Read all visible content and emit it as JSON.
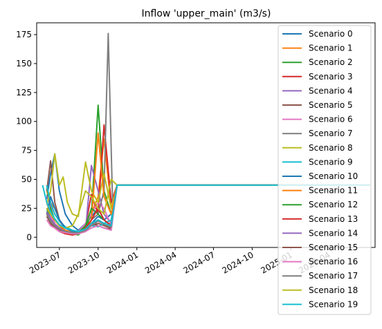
{
  "chart_data": {
    "type": "line",
    "title": "Inflow 'upper_main' (m3/s)",
    "xlabel": "",
    "ylabel": "",
    "x_axis": "date",
    "xlim": [
      "2023-05-08",
      "2025-07-20"
    ],
    "ylim": [
      -8.8,
      185.2
    ],
    "x_ticks": [
      "2023-07-01",
      "2023-10-01",
      "2024-01-01",
      "2024-04-01",
      "2024-07-01",
      "2024-10-01",
      "2025-01-01",
      "2025-04-01"
    ],
    "x_tick_labels": [
      "2023-07",
      "2023-10",
      "2024-01",
      "2024-04",
      "2024-07",
      "2024-10",
      "2025-01",
      "2025-04"
    ],
    "y_ticks": [
      0,
      25,
      50,
      75,
      100,
      125,
      150,
      175
    ],
    "y_tick_labels": [
      "0",
      "25",
      "50",
      "75",
      "100",
      "125",
      "150",
      "175"
    ],
    "grid": false,
    "legend_position": "right",
    "colors": [
      "#1f77b4",
      "#ff7f0e",
      "#2ca02c",
      "#d62728",
      "#9467bd",
      "#8c564b",
      "#e377c2",
      "#7f7f7f",
      "#bcbd22",
      "#17becf"
    ],
    "baseline": {
      "x": [
        "2023-05-22",
        "2025-07-08"
      ],
      "value": 45
    },
    "series": [
      {
        "name": "Scenario 0",
        "x": [
          "2023-06-01",
          "2023-06-10",
          "2023-06-20",
          "2023-07-01",
          "2023-07-15",
          "2023-08-01",
          "2023-08-15",
          "2023-09-01",
          "2023-09-15",
          "2023-10-01",
          "2023-10-15",
          "2023-11-01",
          "2023-11-15"
        ],
        "y": [
          33,
          55,
          72,
          40,
          20,
          10,
          6,
          12,
          18,
          25,
          15,
          20,
          45
        ]
      },
      {
        "name": "Scenario 1",
        "x": [
          "2023-06-01",
          "2023-06-10",
          "2023-06-20",
          "2023-07-01",
          "2023-07-15",
          "2023-08-01",
          "2023-08-15",
          "2023-09-01",
          "2023-09-15",
          "2023-10-01",
          "2023-10-15",
          "2023-11-01",
          "2023-11-15"
        ],
        "y": [
          40,
          30,
          25,
          15,
          8,
          5,
          4,
          10,
          20,
          35,
          85,
          25,
          45
        ]
      },
      {
        "name": "Scenario 2",
        "x": [
          "2023-06-01",
          "2023-06-10",
          "2023-06-20",
          "2023-07-01",
          "2023-07-15",
          "2023-08-01",
          "2023-08-15",
          "2023-09-01",
          "2023-09-15",
          "2023-10-01",
          "2023-10-15",
          "2023-11-01",
          "2023-11-15"
        ],
        "y": [
          45,
          25,
          15,
          10,
          5,
          3,
          2,
          8,
          20,
          114,
          40,
          20,
          45
        ]
      },
      {
        "name": "Scenario 3",
        "x": [
          "2023-06-01",
          "2023-06-10",
          "2023-06-20",
          "2023-07-01",
          "2023-07-15",
          "2023-08-01",
          "2023-08-15",
          "2023-09-01",
          "2023-09-15",
          "2023-10-01",
          "2023-10-15",
          "2023-11-01",
          "2023-11-15"
        ],
        "y": [
          30,
          20,
          12,
          6,
          3,
          2,
          3,
          10,
          37,
          20,
          97,
          30,
          45
        ]
      },
      {
        "name": "Scenario 4",
        "x": [
          "2023-06-01",
          "2023-06-10",
          "2023-06-20",
          "2023-07-01",
          "2023-07-15",
          "2023-08-01",
          "2023-08-15",
          "2023-09-01",
          "2023-09-15",
          "2023-10-01",
          "2023-10-15",
          "2023-11-01",
          "2023-11-15"
        ],
        "y": [
          35,
          28,
          20,
          14,
          8,
          5,
          4,
          6,
          62,
          40,
          20,
          12,
          45
        ]
      },
      {
        "name": "Scenario 5",
        "x": [
          "2023-06-01",
          "2023-06-10",
          "2023-06-20",
          "2023-07-01",
          "2023-07-15",
          "2023-08-01",
          "2023-08-15",
          "2023-09-01",
          "2023-09-15",
          "2023-10-01",
          "2023-10-15",
          "2023-11-01",
          "2023-11-15"
        ],
        "y": [
          40,
          66,
          30,
          15,
          8,
          5,
          3,
          6,
          10,
          12,
          10,
          8,
          45
        ]
      },
      {
        "name": "Scenario 6",
        "x": [
          "2023-06-01",
          "2023-06-10",
          "2023-06-20",
          "2023-07-01",
          "2023-07-15",
          "2023-08-01",
          "2023-08-15",
          "2023-09-01",
          "2023-09-15",
          "2023-10-01",
          "2023-10-15",
          "2023-11-01",
          "2023-11-15"
        ],
        "y": [
          25,
          18,
          12,
          8,
          5,
          3,
          5,
          12,
          20,
          30,
          25,
          10,
          45
        ]
      },
      {
        "name": "Scenario 7",
        "x": [
          "2023-06-01",
          "2023-06-10",
          "2023-06-20",
          "2023-07-01",
          "2023-07-15",
          "2023-08-01",
          "2023-08-15",
          "2023-09-01",
          "2023-09-15",
          "2023-10-01",
          "2023-10-15",
          "2023-10-25",
          "2023-11-05",
          "2023-11-15"
        ],
        "y": [
          30,
          22,
          15,
          10,
          6,
          4,
          3,
          5,
          15,
          20,
          40,
          176,
          20,
          45
        ]
      },
      {
        "name": "Scenario 8",
        "x": [
          "2023-06-01",
          "2023-06-10",
          "2023-06-20",
          "2023-07-01",
          "2023-07-10",
          "2023-07-20",
          "2023-08-01",
          "2023-08-15",
          "2023-09-01",
          "2023-09-15",
          "2023-10-01",
          "2023-10-15",
          "2023-11-01",
          "2023-11-15"
        ],
        "y": [
          28,
          40,
          72,
          45,
          52,
          30,
          20,
          18,
          65,
          40,
          30,
          55,
          25,
          45
        ]
      },
      {
        "name": "Scenario 9",
        "x": [
          "2023-06-01",
          "2023-06-10",
          "2023-06-20",
          "2023-07-01",
          "2023-07-15",
          "2023-08-01",
          "2023-08-15",
          "2023-09-01",
          "2023-09-15",
          "2023-10-01",
          "2023-10-15",
          "2023-11-01",
          "2023-11-15"
        ],
        "y": [
          45,
          30,
          20,
          14,
          9,
          6,
          5,
          7,
          10,
          9,
          12,
          15,
          45
        ]
      },
      {
        "name": "Scenario 10",
        "x": [
          "2023-06-01",
          "2023-06-10",
          "2023-06-20",
          "2023-07-01",
          "2023-07-15",
          "2023-08-01",
          "2023-08-15",
          "2023-09-01",
          "2023-09-15",
          "2023-10-01",
          "2023-10-15",
          "2023-11-01",
          "2023-11-15"
        ],
        "y": [
          20,
          35,
          25,
          15,
          8,
          5,
          4,
          6,
          12,
          18,
          15,
          10,
          45
        ]
      },
      {
        "name": "Scenario 11",
        "x": [
          "2023-06-01",
          "2023-06-10",
          "2023-06-20",
          "2023-07-01",
          "2023-07-15",
          "2023-08-01",
          "2023-08-15",
          "2023-09-01",
          "2023-09-15",
          "2023-10-01",
          "2023-10-15",
          "2023-11-01",
          "2023-11-15"
        ],
        "y": [
          30,
          20,
          15,
          10,
          6,
          4,
          3,
          5,
          15,
          90,
          35,
          20,
          45
        ]
      },
      {
        "name": "Scenario 12",
        "x": [
          "2023-06-01",
          "2023-06-10",
          "2023-06-20",
          "2023-07-01",
          "2023-07-15",
          "2023-08-01",
          "2023-08-15",
          "2023-09-01",
          "2023-09-15",
          "2023-10-01",
          "2023-10-15",
          "2023-11-01",
          "2023-11-15"
        ],
        "y": [
          25,
          15,
          10,
          7,
          4,
          3,
          4,
          10,
          25,
          20,
          15,
          10,
          45
        ]
      },
      {
        "name": "Scenario 13",
        "x": [
          "2023-06-01",
          "2023-06-10",
          "2023-06-20",
          "2023-07-01",
          "2023-07-15",
          "2023-08-01",
          "2023-08-15",
          "2023-09-01",
          "2023-09-15",
          "2023-10-01",
          "2023-10-15",
          "2023-11-01",
          "2023-11-15"
        ],
        "y": [
          20,
          12,
          8,
          5,
          3,
          2,
          3,
          8,
          15,
          25,
          15,
          10,
          45
        ]
      },
      {
        "name": "Scenario 14",
        "x": [
          "2023-06-01",
          "2023-06-10",
          "2023-06-20",
          "2023-07-01",
          "2023-07-15",
          "2023-08-01",
          "2023-08-15",
          "2023-09-01",
          "2023-09-15",
          "2023-10-01",
          "2023-10-15",
          "2023-11-01",
          "2023-11-15"
        ],
        "y": [
          22,
          16,
          11,
          8,
          5,
          4,
          3,
          6,
          10,
          15,
          12,
          9,
          45
        ]
      },
      {
        "name": "Scenario 15",
        "x": [
          "2023-06-01",
          "2023-06-10",
          "2023-06-20",
          "2023-07-01",
          "2023-07-15",
          "2023-08-01",
          "2023-08-15",
          "2023-09-01",
          "2023-09-15",
          "2023-10-01",
          "2023-10-15",
          "2023-11-01",
          "2023-11-15"
        ],
        "y": [
          18,
          12,
          9,
          6,
          4,
          3,
          4,
          7,
          12,
          10,
          8,
          7,
          45
        ]
      },
      {
        "name": "Scenario 16",
        "x": [
          "2023-06-01",
          "2023-06-10",
          "2023-06-20",
          "2023-07-01",
          "2023-07-15",
          "2023-08-01",
          "2023-08-15",
          "2023-09-01",
          "2023-09-15",
          "2023-10-01",
          "2023-10-15",
          "2023-11-01",
          "2023-11-15"
        ],
        "y": [
          15,
          10,
          8,
          5,
          4,
          3,
          3,
          5,
          8,
          10,
          8,
          6,
          45
        ]
      },
      {
        "name": "Scenario 17",
        "x": [
          "2023-06-01",
          "2023-06-10",
          "2023-06-20",
          "2023-07-01",
          "2023-07-15",
          "2023-08-01",
          "2023-08-15",
          "2023-09-01",
          "2023-09-15",
          "2023-10-01",
          "2023-10-15",
          "2023-11-01",
          "2023-11-15"
        ],
        "y": [
          20,
          14,
          10,
          7,
          5,
          4,
          4,
          6,
          10,
          14,
          11,
          9,
          45
        ]
      },
      {
        "name": "Scenario 18",
        "x": [
          "2023-06-01",
          "2023-06-10",
          "2023-06-20",
          "2023-07-01",
          "2023-07-15",
          "2023-08-01",
          "2023-08-15",
          "2023-09-01",
          "2023-09-15",
          "2023-10-01",
          "2023-10-15",
          "2023-11-01",
          "2023-11-15"
        ],
        "y": [
          25,
          20,
          15,
          10,
          8,
          10,
          20,
          40,
          35,
          25,
          20,
          50,
          45
        ]
      },
      {
        "name": "Scenario 19",
        "x": [
          "2023-06-01",
          "2023-06-10",
          "2023-06-20",
          "2023-07-01",
          "2023-07-15",
          "2023-08-01",
          "2023-08-15",
          "2023-09-01",
          "2023-09-15",
          "2023-10-01",
          "2023-10-15",
          "2023-11-01",
          "2023-11-15"
        ],
        "y": [
          30,
          22,
          16,
          11,
          8,
          6,
          5,
          7,
          12,
          15,
          12,
          10,
          45
        ]
      }
    ]
  }
}
